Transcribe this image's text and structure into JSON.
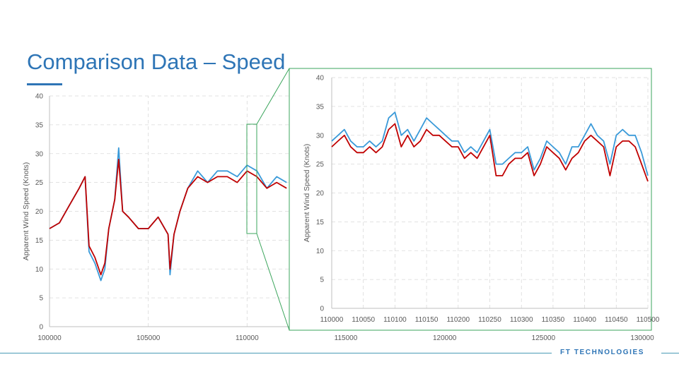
{
  "slide": {
    "title": "Comparison Data – Speed",
    "brand": "FT TECHNOLOGIES",
    "accent_color": "#2E75B6",
    "footer_line_color": "#4A9BB5",
    "brand_color": "#2E75B6",
    "zoom_frame_color": "#3BA55C"
  },
  "chart_data": [
    {
      "type": "line",
      "title": "",
      "xlabel": "",
      "ylabel": "Apparent Wind Speed (Knots)",
      "xlim": [
        100000,
        130000
      ],
      "ylim": [
        0,
        40
      ],
      "x_ticks": [
        100000,
        105000,
        110000,
        115000,
        120000,
        125000,
        130000
      ],
      "y_ticks": [
        0,
        5,
        10,
        15,
        20,
        25,
        30,
        35,
        40
      ],
      "grid": true,
      "legend": "none",
      "series": [
        {
          "color": "#3A9AD9",
          "x": [
            100000,
            100500,
            101000,
            101500,
            101800,
            102000,
            102300,
            102600,
            102800,
            103000,
            103300,
            103500,
            103700,
            104000,
            104500,
            105000,
            105500,
            106000,
            106100,
            106300,
            106600,
            107000,
            107500,
            108000,
            108500,
            109000,
            109500,
            110000,
            110500,
            111000,
            111500,
            112000
          ],
          "y": [
            17,
            18,
            21,
            24,
            26,
            13,
            11,
            8,
            10,
            17,
            22,
            31,
            20,
            19,
            17,
            17,
            19,
            16,
            9,
            16,
            20,
            24,
            27,
            25,
            27,
            27,
            26,
            28,
            27,
            24,
            26,
            25
          ]
        },
        {
          "color": "#C00000",
          "x": [
            100000,
            100500,
            101000,
            101500,
            101800,
            102000,
            102300,
            102600,
            102800,
            103000,
            103300,
            103500,
            103700,
            104000,
            104500,
            105000,
            105500,
            106000,
            106100,
            106300,
            106600,
            107000,
            107500,
            108000,
            108500,
            109000,
            109500,
            110000,
            110500,
            111000,
            111500,
            112000
          ],
          "y": [
            17,
            18,
            21,
            24,
            26,
            14,
            12,
            9,
            11,
            17,
            22,
            29,
            20,
            19,
            17,
            17,
            19,
            16,
            10,
            16,
            20,
            24,
            26,
            25,
            26,
            26,
            25,
            27,
            26,
            24,
            25,
            24
          ]
        }
      ]
    },
    {
      "type": "line",
      "title": "",
      "xlabel": "",
      "ylabel": "Apparent Wind Speed (Knots)",
      "xlim": [
        110000,
        110500
      ],
      "ylim": [
        0,
        40
      ],
      "x_ticks": [
        110000,
        110050,
        110100,
        110150,
        110200,
        110250,
        110300,
        110350,
        110400,
        110450,
        110500
      ],
      "y_ticks": [
        0,
        5,
        10,
        15,
        20,
        25,
        30,
        35,
        40
      ],
      "grid": true,
      "legend": "none",
      "series": [
        {
          "color": "#3A9AD9",
          "x": [
            110000,
            110010,
            110020,
            110030,
            110040,
            110050,
            110060,
            110070,
            110080,
            110090,
            110100,
            110110,
            110120,
            110130,
            110140,
            110150,
            110160,
            110170,
            110180,
            110190,
            110200,
            110210,
            110220,
            110230,
            110240,
            110250,
            110260,
            110270,
            110280,
            110290,
            110300,
            110310,
            110320,
            110330,
            110340,
            110350,
            110360,
            110370,
            110380,
            110390,
            110400,
            110410,
            110420,
            110430,
            110440,
            110450,
            110460,
            110470,
            110480,
            110490,
            110500
          ],
          "y": [
            29,
            30,
            31,
            29,
            28,
            28,
            29,
            28,
            29,
            33,
            34,
            30,
            31,
            29,
            31,
            33,
            32,
            31,
            30,
            29,
            29,
            27,
            28,
            27,
            29,
            31,
            25,
            25,
            26,
            27,
            27,
            28,
            24,
            26,
            29,
            28,
            27,
            25,
            28,
            28,
            30,
            32,
            30,
            29,
            25,
            30,
            31,
            30,
            30,
            27,
            23
          ]
        },
        {
          "color": "#C00000",
          "x": [
            110000,
            110010,
            110020,
            110030,
            110040,
            110050,
            110060,
            110070,
            110080,
            110090,
            110100,
            110110,
            110120,
            110130,
            110140,
            110150,
            110160,
            110170,
            110180,
            110190,
            110200,
            110210,
            110220,
            110230,
            110240,
            110250,
            110260,
            110270,
            110280,
            110290,
            110300,
            110310,
            110320,
            110330,
            110340,
            110350,
            110360,
            110370,
            110380,
            110390,
            110400,
            110410,
            110420,
            110430,
            110440,
            110450,
            110460,
            110470,
            110480,
            110490,
            110500
          ],
          "y": [
            28,
            29,
            30,
            28,
            27,
            27,
            28,
            27,
            28,
            31,
            32,
            28,
            30,
            28,
            29,
            31,
            30,
            30,
            29,
            28,
            28,
            26,
            27,
            26,
            28,
            30,
            23,
            23,
            25,
            26,
            26,
            27,
            23,
            25,
            28,
            27,
            26,
            24,
            26,
            27,
            29,
            30,
            29,
            28,
            23,
            28,
            29,
            29,
            28,
            25,
            22
          ]
        }
      ]
    }
  ]
}
